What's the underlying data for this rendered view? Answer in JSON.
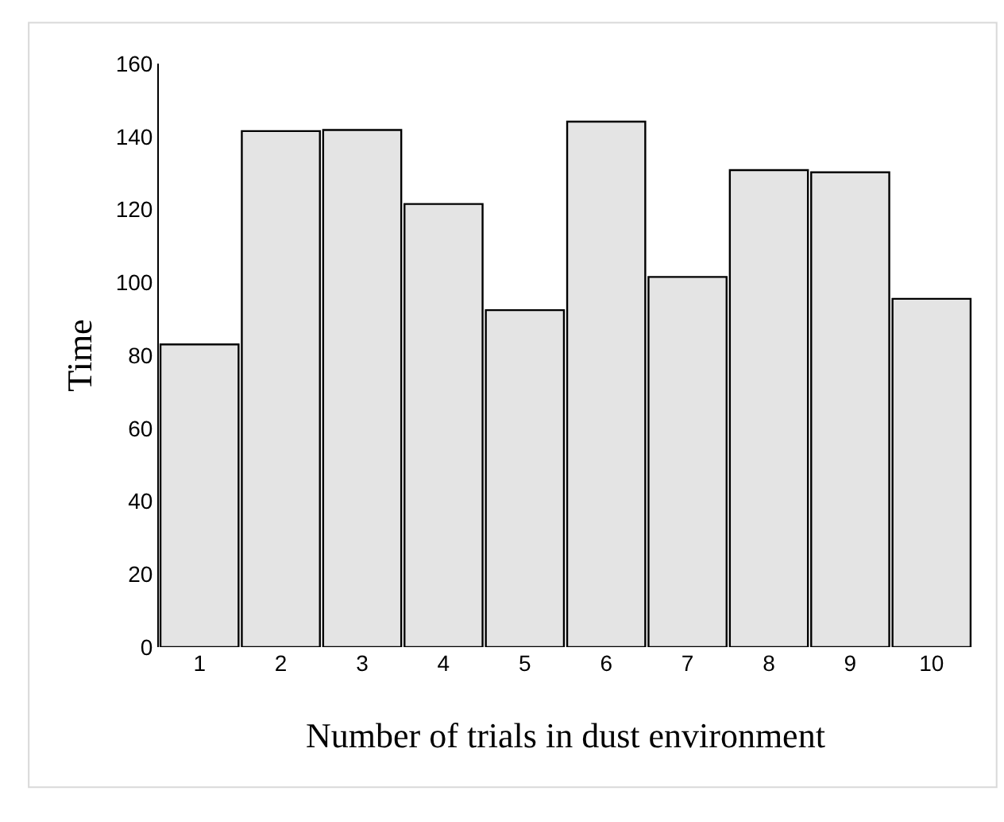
{
  "chart_data": {
    "type": "bar",
    "xlabel": "Number of trials in dust environment",
    "ylabel": "Time",
    "categories": [
      "1",
      "2",
      "3",
      "4",
      "5",
      "6",
      "7",
      "8",
      "9",
      "10"
    ],
    "values": [
      83,
      141.5,
      141.8,
      121.5,
      92.4,
      144.1,
      101.5,
      130.8,
      130.2,
      95.5
    ],
    "color": "#e4e4e4",
    "ylim": [
      0,
      160
    ],
    "yticks": [
      0,
      20,
      40,
      60,
      80,
      100,
      120,
      140,
      160
    ]
  }
}
